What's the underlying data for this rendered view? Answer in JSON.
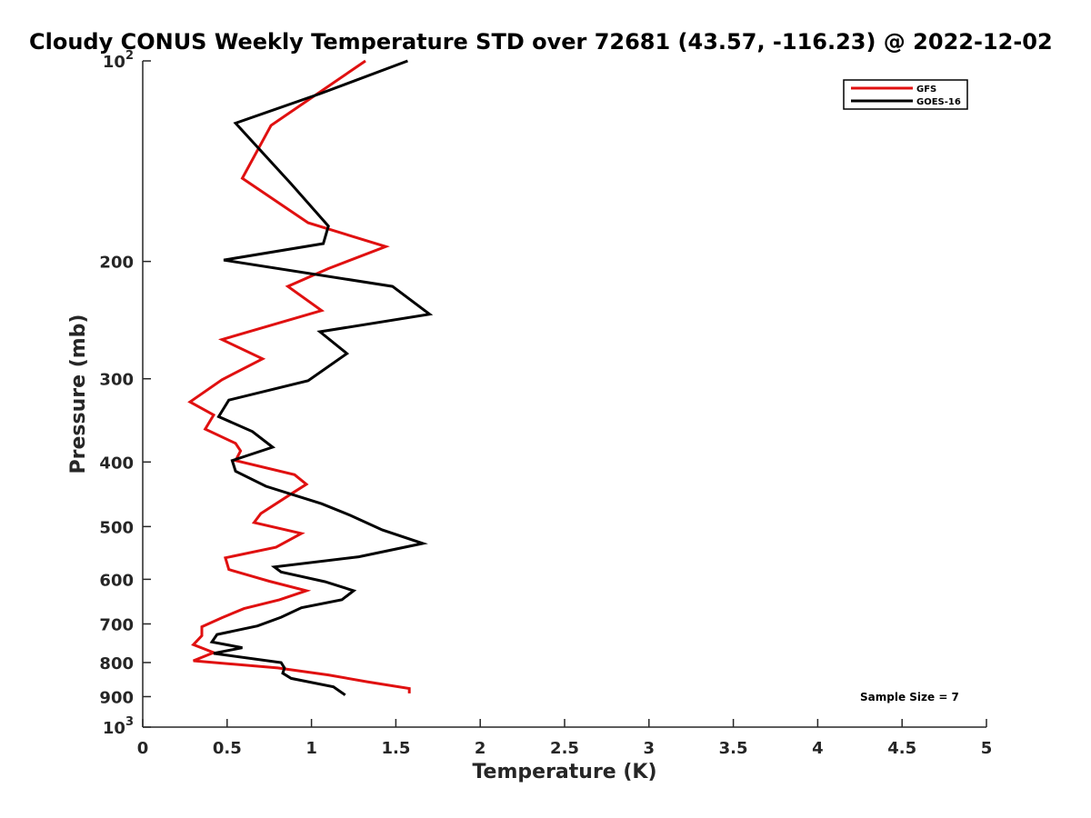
{
  "chart_data": {
    "type": "line",
    "title": "Cloudy CONUS Weekly Temperature STD over 72681 (43.57, -116.23) @ 2022-12-02",
    "xlabel": "Temperature (K)",
    "ylabel": "Pressure (mb)",
    "xlim": [
      0,
      5
    ],
    "ylim": [
      1000,
      100
    ],
    "y_scale": "log",
    "y_inverted": true,
    "grid": false,
    "legend_position": "top-right",
    "x_ticks": [
      0,
      0.5,
      1,
      1.5,
      2,
      2.5,
      3,
      3.5,
      4,
      4.5,
      5
    ],
    "x_tick_labels": [
      "0",
      "0.5",
      "1",
      "1.5",
      "2",
      "2.5",
      "3",
      "3.5",
      "4",
      "4.5",
      "5"
    ],
    "y_ticks": [
      100,
      200,
      300,
      400,
      500,
      600,
      700,
      800,
      900,
      1000
    ],
    "y_tick_labels": [
      {
        "base": "10",
        "exp": "2"
      },
      {
        "base": "200",
        "exp": ""
      },
      {
        "base": "300",
        "exp": ""
      },
      {
        "base": "400",
        "exp": ""
      },
      {
        "base": "500",
        "exp": ""
      },
      {
        "base": "600",
        "exp": ""
      },
      {
        "base": "700",
        "exp": ""
      },
      {
        "base": "800",
        "exp": ""
      },
      {
        "base": "900",
        "exp": ""
      },
      {
        "base": "10",
        "exp": "3"
      }
    ],
    "annotation": "Sample Size = 7",
    "series": [
      {
        "name": "GFS",
        "color": "#e01010",
        "points": [
          [
            1.32,
            100
          ],
          [
            0.76,
            125
          ],
          [
            0.59,
            150
          ],
          [
            0.98,
            175
          ],
          [
            1.44,
            190
          ],
          [
            1.1,
            205
          ],
          [
            0.86,
            218
          ],
          [
            1.06,
            237
          ],
          [
            0.47,
            262
          ],
          [
            0.71,
            280
          ],
          [
            0.47,
            301
          ],
          [
            0.28,
            325
          ],
          [
            0.42,
            340
          ],
          [
            0.37,
            357
          ],
          [
            0.55,
            375
          ],
          [
            0.58,
            385
          ],
          [
            0.55,
            398
          ],
          [
            0.9,
            418
          ],
          [
            0.97,
            432
          ],
          [
            0.89,
            445
          ],
          [
            0.7,
            478
          ],
          [
            0.66,
            493
          ],
          [
            0.94,
            512
          ],
          [
            0.79,
            537
          ],
          [
            0.49,
            557
          ],
          [
            0.51,
            580
          ],
          [
            0.75,
            604
          ],
          [
            0.97,
            624
          ],
          [
            0.81,
            644
          ],
          [
            0.6,
            664
          ],
          [
            0.47,
            685
          ],
          [
            0.35,
            707
          ],
          [
            0.35,
            729
          ],
          [
            0.3,
            752
          ],
          [
            0.42,
            773
          ],
          [
            0.3,
            795
          ],
          [
            0.8,
            815
          ],
          [
            1.1,
            835
          ],
          [
            1.33,
            855
          ],
          [
            1.58,
            875
          ],
          [
            1.58,
            890
          ]
        ]
      },
      {
        "name": "GOES-16",
        "color": "#000000",
        "points": [
          [
            1.57,
            100
          ],
          [
            1.05,
            112
          ],
          [
            0.55,
            124
          ],
          [
            0.88,
            153
          ],
          [
            1.1,
            177
          ],
          [
            1.07,
            188
          ],
          [
            0.48,
            199
          ],
          [
            1.48,
            218
          ],
          [
            1.7,
            240
          ],
          [
            1.05,
            255
          ],
          [
            1.21,
            275
          ],
          [
            0.98,
            302
          ],
          [
            0.51,
            323
          ],
          [
            0.45,
            342
          ],
          [
            0.65,
            360
          ],
          [
            0.77,
            380
          ],
          [
            0.53,
            398
          ],
          [
            0.55,
            413
          ],
          [
            0.73,
            435
          ],
          [
            1.06,
            462
          ],
          [
            1.23,
            481
          ],
          [
            1.42,
            506
          ],
          [
            1.66,
            530
          ],
          [
            1.28,
            555
          ],
          [
            0.78,
            575
          ],
          [
            0.82,
            585
          ],
          [
            1.08,
            605
          ],
          [
            1.25,
            624
          ],
          [
            1.18,
            644
          ],
          [
            0.94,
            662
          ],
          [
            0.82,
            684
          ],
          [
            0.68,
            705
          ],
          [
            0.44,
            726
          ],
          [
            0.41,
            745
          ],
          [
            0.59,
            760
          ],
          [
            0.42,
            775
          ],
          [
            0.82,
            800
          ],
          [
            0.84,
            815
          ],
          [
            0.83,
            830
          ],
          [
            0.88,
            845
          ],
          [
            1.13,
            870
          ],
          [
            1.2,
            895
          ]
        ]
      }
    ]
  }
}
